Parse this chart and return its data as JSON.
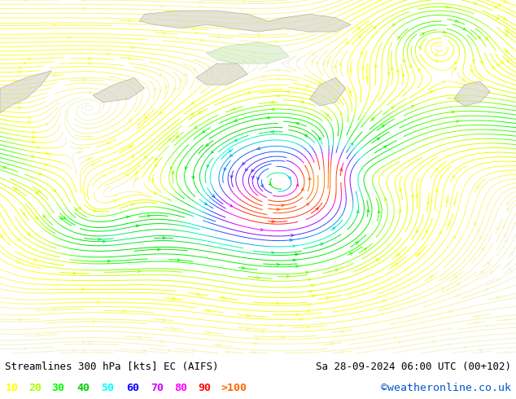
{
  "title_left": "Streamlines 300 hPa [kts] EC (AIFS)",
  "title_right": "Sa 28-09-2024 06:00 UTC (00+102)",
  "watermark": "©weatheronline.co.uk",
  "legend_values": [
    "10",
    "20",
    "30",
    "40",
    "50",
    "60",
    "70",
    "80",
    "90",
    ">100"
  ],
  "legend_colors": [
    "#ffff00",
    "#aaff00",
    "#00ff00",
    "#00cc00",
    "#00ffff",
    "#0000ff",
    "#cc00ff",
    "#ff00ff",
    "#ff0000",
    "#ff6600"
  ],
  "background_color": "#ffffff",
  "map_background": "#ffffff",
  "fig_width": 6.34,
  "fig_height": 4.9,
  "dpi": 100,
  "bottom_bar_color": "#ffffff",
  "title_fontsize": 9,
  "legend_fontsize": 9.5,
  "watermark_color": "#0055cc",
  "title_color": "#000000",
  "speed_colors": [
    "#ffff00",
    "#ccff00",
    "#00ff00",
    "#00dd00",
    "#00ffcc",
    "#0066ff",
    "#8800ff",
    "#ff00ff",
    "#ff2200",
    "#ff8800"
  ],
  "speed_boundaries": [
    0,
    10,
    20,
    30,
    40,
    50,
    60,
    70,
    80,
    90,
    120
  ]
}
